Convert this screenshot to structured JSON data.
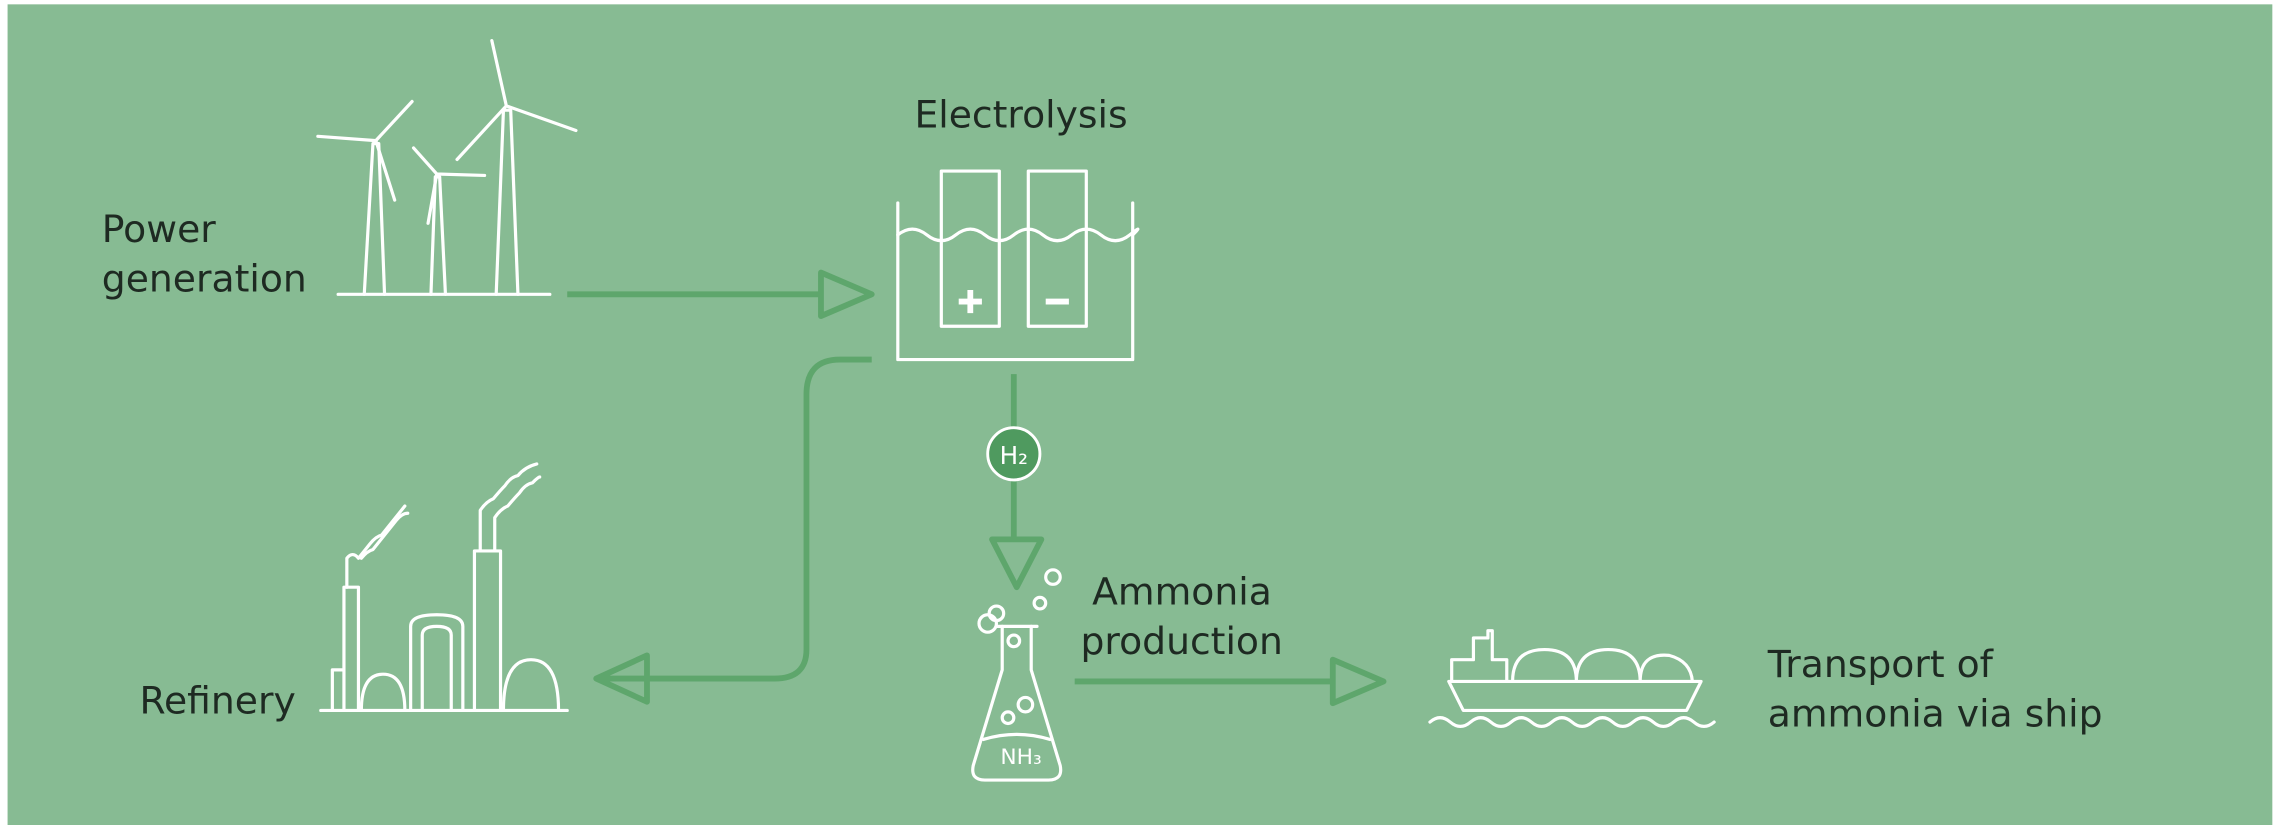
{
  "nodes": [
    {
      "label": [
        "Power",
        "generation"
      ]
    },
    {
      "label": [
        "Electrolysis"
      ]
    },
    {
      "label": [
        "H₂"
      ]
    },
    {
      "label": [
        "Refinery"
      ]
    },
    {
      "label": [
        "Ammonia",
        "production"
      ]
    },
    {
      "label": [
        "NH₃"
      ]
    },
    {
      "label": [
        "Transport of",
        "ammonia via ship"
      ]
    }
  ]
}
